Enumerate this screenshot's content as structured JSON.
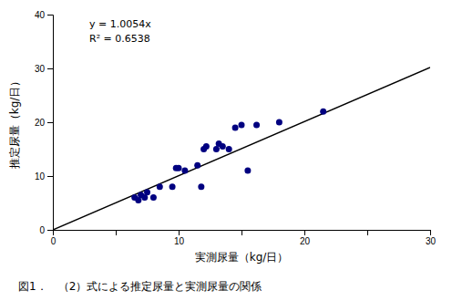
{
  "chart_data": {
    "type": "scatter",
    "title": "図1．　（2）式による推定尿量と実測尿量の関係",
    "x_label": "実測尿量（kg/日）",
    "y_label": "推定尿量（kg/日）",
    "annotations": [
      "y = 1.0054x",
      "R² = 0.6538"
    ],
    "series": [
      {
        "type": "scatter",
        "marker": "circle",
        "color": "#000080",
        "x": [
          6.5,
          6.8,
          7.0,
          7.3,
          7.5,
          8.0,
          8.5,
          9.5,
          9.8,
          10.0,
          10.5,
          11.5,
          11.8,
          12.0,
          12.2,
          13.0,
          13.2,
          13.5,
          14.0,
          14.5,
          15.0,
          15.5,
          16.2,
          18.0,
          21.5
        ],
        "values": [
          6.0,
          5.5,
          6.5,
          6.0,
          7.0,
          6.0,
          8.0,
          8.0,
          11.5,
          11.5,
          11.0,
          12.0,
          8.0,
          15.0,
          15.5,
          15.0,
          16.0,
          15.5,
          15.0,
          19.0,
          19.5,
          11.0,
          19.5,
          20.0,
          22.0
        ]
      },
      {
        "type": "line",
        "line_style": "solid",
        "color": "#000000",
        "x": [
          0,
          30
        ],
        "values": [
          0,
          30.162
        ]
      }
    ],
    "xlim": [
      0,
      30
    ],
    "ylim": [
      0,
      40
    ],
    "xticks": [
      0,
      {
        "value": 5,
        "label": null
      },
      10,
      {
        "value": 15,
        "label": null
      },
      20,
      {
        "value": 25,
        "label": null
      },
      30
    ],
    "yticks": [
      0,
      10,
      20,
      30,
      40
    ],
    "grid": false
  }
}
